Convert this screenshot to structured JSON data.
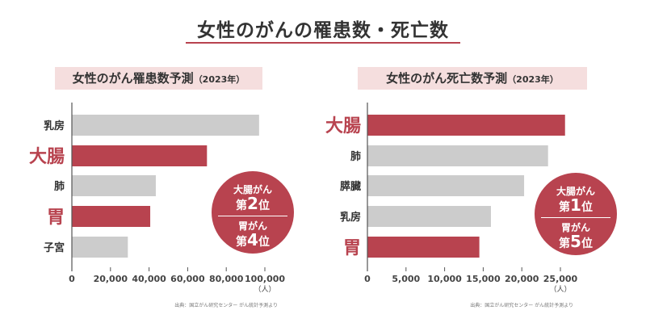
{
  "title": "女性のがんの罹患数・死亡数",
  "colors": {
    "highlight": "#b8434f",
    "normal": "#cccccc",
    "subtitle_bg": "#f5dede"
  },
  "chart_data": [
    {
      "type": "bar",
      "orientation": "horizontal",
      "title": "女性のがん罹患数予測",
      "title_suffix": "（2023年）",
      "categories": [
        "乳房",
        "大腸",
        "肺",
        "胃",
        "子宮"
      ],
      "highlighted": [
        false,
        true,
        false,
        true,
        false
      ],
      "values": [
        97000,
        70000,
        43500,
        40600,
        29000
      ],
      "xlim": [
        0,
        100000
      ],
      "xticks": [
        0,
        20000,
        40000,
        60000,
        80000,
        100000
      ],
      "xtick_labels": [
        "0",
        "20,000",
        "40,000",
        "60,000",
        "80,000",
        "100,000"
      ],
      "unit": "（人）",
      "source": "出典：国立がん研究センター がん統計予測より",
      "badge": {
        "line1": "大腸がん",
        "rank1_pre": "第",
        "rank1": "2",
        "rank1_post": "位",
        "line3": "胃がん",
        "rank2_pre": "第",
        "rank2": "4",
        "rank2_post": "位"
      }
    },
    {
      "type": "bar",
      "orientation": "horizontal",
      "title": "女性のがん死亡数予測",
      "title_suffix": "（2023年）",
      "categories": [
        "大腸",
        "肺",
        "膵臓",
        "乳房",
        "胃"
      ],
      "highlighted": [
        true,
        false,
        false,
        false,
        true
      ],
      "values": [
        25600,
        23400,
        20300,
        16000,
        14500
      ],
      "xlim": [
        0,
        25000
      ],
      "xticks": [
        0,
        5000,
        10000,
        15000,
        20000,
        25000
      ],
      "xtick_labels": [
        "0",
        "5,000",
        "10,000",
        "15,000",
        "20,000",
        "25,000"
      ],
      "unit": "（人）",
      "source": "出典：国立がん研究センター がん統計予測より",
      "badge": {
        "line1": "大腸がん",
        "rank1_pre": "第",
        "rank1": "1",
        "rank1_post": "位",
        "line3": "胃がん",
        "rank2_pre": "第",
        "rank2": "5",
        "rank2_post": "位"
      }
    }
  ]
}
